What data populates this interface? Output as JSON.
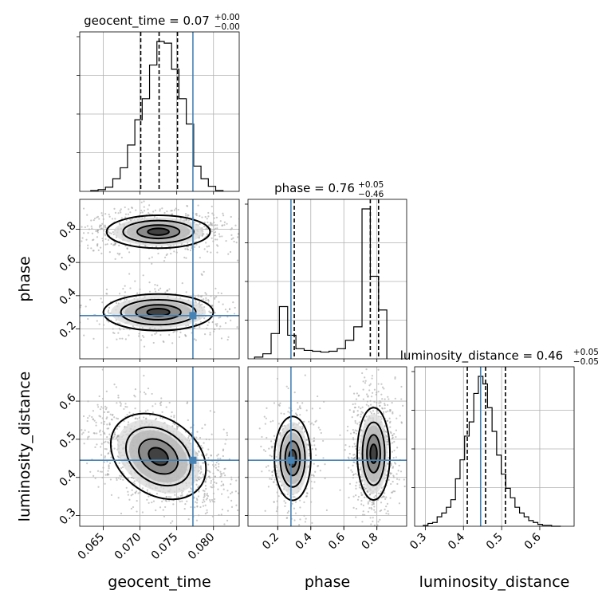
{
  "chart_data": {
    "type": "corner",
    "parameters": [
      "geocent_time",
      "phase",
      "luminosity_distance"
    ],
    "truths": {
      "geocent_time": 0.0772,
      "phase": 0.28,
      "luminosity_distance": 0.445
    },
    "titles": [
      {
        "base": "geocent_time = 0.07",
        "sup": "+0.00",
        "sub": "−0.00"
      },
      {
        "base": "phase = 0.76",
        "sup": "+0.05",
        "sub": "−0.46"
      },
      {
        "base": "luminosity_distance = 0.46",
        "sup": "+0.05",
        "sub": "−0.05"
      }
    ],
    "axes": {
      "geocent_time": {
        "range": [
          0.0618,
          0.0835
        ],
        "ticks": [
          0.065,
          0.07,
          0.075,
          0.08
        ],
        "tick_labels": [
          "0.065",
          "0.070",
          "0.075",
          "0.080"
        ]
      },
      "phase": {
        "range": [
          0.02,
          0.98
        ],
        "ticks": [
          0.2,
          0.4,
          0.6,
          0.8
        ],
        "tick_labels": [
          "0.2",
          "0.4",
          "0.6",
          "0.8"
        ]
      },
      "luminosity_distance": {
        "range": [
          0.272,
          0.69
        ],
        "ticks": [
          0.3,
          0.4,
          0.5,
          0.6
        ],
        "tick_labels": [
          "0.3",
          "0.4",
          "0.5",
          "0.6"
        ]
      }
    },
    "histograms": {
      "geocent_time": {
        "edges": [
          0.0633,
          0.0643,
          0.0653,
          0.0663,
          0.0673,
          0.0683,
          0.0693,
          0.0703,
          0.0713,
          0.0723,
          0.0733,
          0.0743,
          0.0753,
          0.0763,
          0.0773,
          0.0783,
          0.0793,
          0.0803,
          0.0813
        ],
        "counts": [
          1,
          2,
          5,
          15,
          28,
          55,
          85,
          110,
          150,
          178,
          176,
          145,
          110,
          80,
          30,
          15,
          6,
          1
        ],
        "quantiles": [
          0.0701,
          0.0726,
          0.0751
        ]
      },
      "phase": {
        "edges": [
          0.06,
          0.11,
          0.16,
          0.21,
          0.26,
          0.31,
          0.36,
          0.41,
          0.46,
          0.51,
          0.56,
          0.61,
          0.66,
          0.71,
          0.76,
          0.81,
          0.86
        ],
        "counts": [
          2,
          6,
          30,
          62,
          28,
          12,
          10,
          9,
          8,
          9,
          12,
          22,
          38,
          178,
          98,
          58
        ],
        "quantiles": [
          0.3,
          0.76,
          0.81
        ]
      },
      "luminosity_distance": {
        "edges": [
          0.295,
          0.307,
          0.319,
          0.331,
          0.343,
          0.355,
          0.367,
          0.379,
          0.391,
          0.403,
          0.415,
          0.427,
          0.439,
          0.451,
          0.463,
          0.475,
          0.487,
          0.499,
          0.511,
          0.523,
          0.535,
          0.547,
          0.559,
          0.571,
          0.583,
          0.595,
          0.607,
          0.619,
          0.631,
          0.643,
          0.655
        ],
        "counts": [
          1,
          3,
          4,
          10,
          14,
          20,
          28,
          50,
          70,
          95,
          110,
          140,
          158,
          150,
          125,
          100,
          75,
          55,
          40,
          30,
          20,
          14,
          10,
          6,
          4,
          2,
          1,
          1,
          0,
          0
        ],
        "quantiles": [
          0.41,
          0.458,
          0.51
        ]
      }
    },
    "density_modes": [
      {
        "x": "geocent_time",
        "y": "phase",
        "modes": [
          {
            "cx": 0.0725,
            "cy": 0.785,
            "sx": 0.0032,
            "sy": 0.045,
            "w": 0.55
          },
          {
            "cx": 0.0725,
            "cy": 0.3,
            "sx": 0.0034,
            "sy": 0.05,
            "w": 0.35
          }
        ]
      },
      {
        "x": "geocent_time",
        "y": "luminosity_distance",
        "modes": [
          {
            "cx": 0.0725,
            "cy": 0.455,
            "sx": 0.0032,
            "sy": 0.045,
            "w": 1.0,
            "rho": -0.45
          }
        ]
      },
      {
        "x": "phase",
        "y": "luminosity_distance",
        "modes": [
          {
            "cx": 0.78,
            "cy": 0.462,
            "sx": 0.045,
            "sy": 0.055,
            "w": 0.6
          },
          {
            "cx": 0.29,
            "cy": 0.45,
            "sx": 0.05,
            "sy": 0.05,
            "w": 0.35
          }
        ]
      }
    ]
  }
}
